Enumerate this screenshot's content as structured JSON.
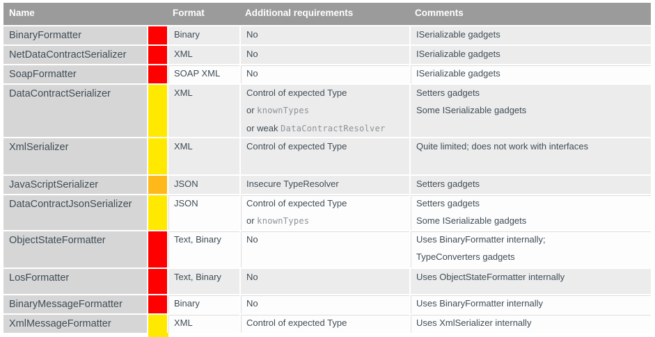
{
  "table": {
    "header": {
      "name": "Name",
      "risk": "",
      "format": "Format",
      "additional": "Additional requirements",
      "comments": "Comments"
    },
    "colors": {
      "header_bg": "#9b9b9b",
      "header_text": "#ffffff",
      "name_col_bg": "#d6d6d6",
      "band_gray": "#ececec",
      "band_white": "#fdfdfd",
      "text": "#3e4c55",
      "code_text": "#8d9297",
      "risk_red": "#fe0000",
      "risk_yellow": "#ffe900",
      "risk_orange": "#ffb81a"
    },
    "rows": [
      {
        "name": "BinaryFormatter",
        "risk": "red",
        "format": "Binary",
        "additional": [
          "No"
        ],
        "comments": [
          "ISerializable gadgets"
        ],
        "band": "gray",
        "min_height": 27
      },
      {
        "name": "NetDataContractSerializer",
        "risk": "red",
        "format": "XML",
        "additional": [
          "No"
        ],
        "comments": [
          "ISerializable gadgets"
        ],
        "band": "gray",
        "min_height": 27
      },
      {
        "name": "SoapFormatter",
        "risk": "red",
        "format": "SOAP XML",
        "additional": [
          "No"
        ],
        "comments": [
          "ISerializable gadgets"
        ],
        "band": "white",
        "min_height": 27
      },
      {
        "name": "DataContractSerializer",
        "risk": "yellow",
        "format": "XML",
        "additional": [
          [
            {
              "text": "Control of expected Type"
            }
          ],
          [
            {
              "text": "or "
            },
            {
              "text": "knownTypes",
              "code": true
            }
          ],
          [
            {
              "text": "or weak "
            },
            {
              "text": "DataContractResolver",
              "code": true
            }
          ]
        ],
        "comments": [
          [
            "Setters gadgets"
          ],
          [
            "Some ISerializable gadgets"
          ]
        ],
        "band": "gray",
        "min_height": 70
      },
      {
        "name": "XmlSerializer",
        "risk": "yellow",
        "format": "XML",
        "additional": [
          "Control of expected Type"
        ],
        "comments": [
          "Quite limited; does not work with interfaces"
        ],
        "band": "gray",
        "min_height": 54
      },
      {
        "name": "JavaScriptSerializer",
        "risk": "orange",
        "format": "JSON",
        "additional": [
          "Insecure TypeResolver"
        ],
        "comments": [
          "Setters gadgets"
        ],
        "band": "gray",
        "min_height": 27
      },
      {
        "name": "DataContractJsonSerializer",
        "risk": "yellow",
        "format": "JSON",
        "additional": [
          [
            {
              "text": "Control of expected Type"
            }
          ],
          [
            {
              "text": "or "
            },
            {
              "text": "knownTypes",
              "code": true
            }
          ]
        ],
        "comments": [
          [
            "Setters gadgets"
          ],
          [
            "Some ISerializable gadgets"
          ]
        ],
        "band": "white",
        "min_height": 52
      },
      {
        "name": "ObjectStateFormatter",
        "risk": "red",
        "format": "Text, Binary",
        "additional": [
          "No"
        ],
        "comments": [
          [
            "Uses BinaryFormatter internally;"
          ],
          [
            "TypeConverters gadgets"
          ]
        ],
        "band": "white",
        "min_height": 54
      },
      {
        "name": "LosFormatter",
        "risk": "red",
        "format": "Text, Binary",
        "additional": [
          "No"
        ],
        "comments": [
          "Uses ObjectStateFormatter internally"
        ],
        "band": "gray",
        "min_height": 38
      },
      {
        "name": "BinaryMessageFormatter",
        "risk": "red",
        "format": "Binary",
        "additional": [
          "No"
        ],
        "comments": [
          "Uses BinaryFormatter internally"
        ],
        "band": "white",
        "min_height": 26
      },
      {
        "name": "XmlMessageFormatter",
        "risk": "yellow",
        "format": "XML",
        "additional": [
          "Control of expected Type"
        ],
        "comments": [
          "Uses XmlSerializer internally"
        ],
        "band": "white",
        "min_height": 26
      }
    ]
  }
}
